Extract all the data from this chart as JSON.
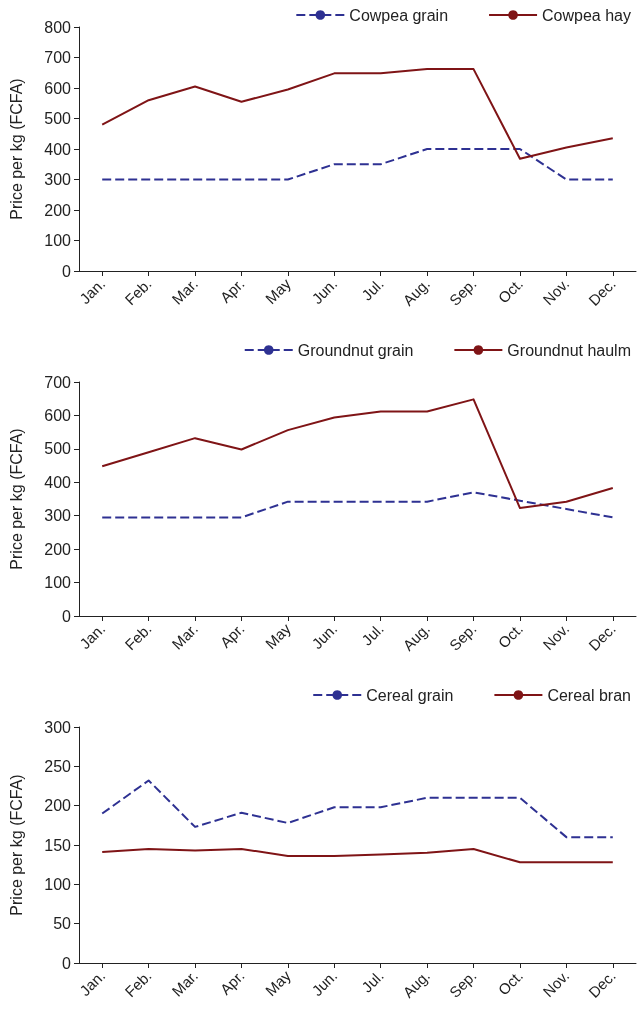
{
  "chart_data": [
    {
      "type": "line",
      "ylabel": "Price per kg (FCFA)",
      "categories": [
        "Jan.",
        "Feb.",
        "Mar.",
        "Apr.",
        "May",
        "Jun.",
        "Jul.",
        "Aug.",
        "Sep.",
        "Oct.",
        "Nov.",
        "Dec."
      ],
      "ylim": [
        0,
        800
      ],
      "yticks": [
        0,
        100,
        200,
        300,
        400,
        500,
        600,
        700,
        800
      ],
      "grid": false,
      "legend": "top right",
      "marker": "none",
      "series": [
        {
          "name": "Cowpea grain",
          "color": "#2e3192",
          "line_style": "dashed",
          "values": [
            300,
            300,
            300,
            300,
            300,
            350,
            350,
            400,
            400,
            400,
            300,
            300
          ]
        },
        {
          "name": "Cowpea hay",
          "color": "#7f1416",
          "line_style": "solid",
          "values": [
            480,
            560,
            605,
            555,
            595,
            648,
            648,
            662,
            662,
            368,
            405,
            435
          ]
        }
      ]
    },
    {
      "type": "line",
      "ylabel": "Price per kg (FCFA)",
      "categories": [
        "Jan.",
        "Feb.",
        "Mar.",
        "Apr.",
        "May",
        "Jun.",
        "Jul.",
        "Aug.",
        "Sep.",
        "Oct.",
        "Nov.",
        "Dec."
      ],
      "ylim": [
        0,
        700
      ],
      "yticks": [
        0,
        100,
        200,
        300,
        400,
        500,
        600,
        700
      ],
      "grid": false,
      "legend": "top right",
      "marker": "none",
      "series": [
        {
          "name": "Groundnut grain",
          "color": "#2e3192",
          "line_style": "dashed",
          "values": [
            295,
            295,
            295,
            295,
            342,
            342,
            342,
            342,
            370,
            345,
            320,
            295
          ]
        },
        {
          "name": "Groundnut haulm",
          "color": "#7f1416",
          "line_style": "solid",
          "values": [
            448,
            490,
            532,
            498,
            556,
            594,
            612,
            612,
            648,
            323,
            342,
            383
          ]
        }
      ]
    },
    {
      "type": "line",
      "ylabel": "Price per kg (FCFA)",
      "categories": [
        "Jan.",
        "Feb.",
        "Mar.",
        "Apr.",
        "May",
        "Jun.",
        "Jul.",
        "Aug.",
        "Sep.",
        "Oct.",
        "Nov.",
        "Dec."
      ],
      "ylim": [
        0,
        300
      ],
      "yticks": [
        0,
        50,
        100,
        150,
        200,
        250,
        300
      ],
      "grid": false,
      "legend": "top right",
      "marker": "none",
      "series": [
        {
          "name": "Cereal grain",
          "color": "#2e3192",
          "line_style": "dashed",
          "values": [
            190,
            232,
            173,
            191,
            178,
            198,
            198,
            210,
            210,
            210,
            160,
            160
          ]
        },
        {
          "name": "Cereal bran",
          "color": "#7f1416",
          "line_style": "solid",
          "values": [
            141,
            145,
            143,
            145,
            136,
            136,
            138,
            140,
            145,
            128,
            128,
            128
          ]
        }
      ]
    }
  ]
}
